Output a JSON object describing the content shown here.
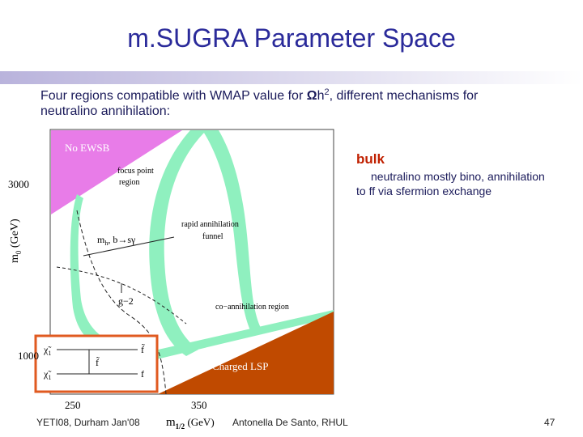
{
  "header": {
    "title": "m.SUGRA Parameter Space"
  },
  "intro": {
    "part1": "Four regions compatible with WMAP value for ",
    "omega": "Ω",
    "h": "h",
    "sup": "2",
    "part2": ", different mechanisms for",
    "line2": "neutralino annihilation:"
  },
  "plot": {
    "regions": {
      "no_ewsb": "No EWSB",
      "focus1": "focus point",
      "focus2": "region",
      "funnel1": "rapid annihilation",
      "funnel2": "funnel",
      "mh": "m",
      "mh_sub": "h",
      "mh_rest": ", b→sγ",
      "g2": "g−2",
      "coann": "co−annihilation region",
      "charged": "Charged LSP"
    },
    "yticks": [
      3000,
      1000
    ],
    "xticks": [
      250,
      350
    ],
    "ylabel": {
      "m": "m",
      "sub": "0",
      "unit": " (GeV)"
    },
    "xlabel": {
      "m": "m",
      "sub": "1/2",
      "unit": " (GeV)"
    },
    "feynman": {
      "chi": "χ̃",
      "chi_sub": "1",
      "chi_sup": "0",
      "sf": "f̃",
      "f": "f"
    }
  },
  "bulk": {
    "title": "bulk",
    "line1": "neutralino mostly bino, annihilation",
    "line2": "to ff via sfermion exchange"
  },
  "footer": {
    "left": "YETI08, Durham Jan'08",
    "center": "Antonella De Santo, RHUL",
    "page": "47"
  }
}
